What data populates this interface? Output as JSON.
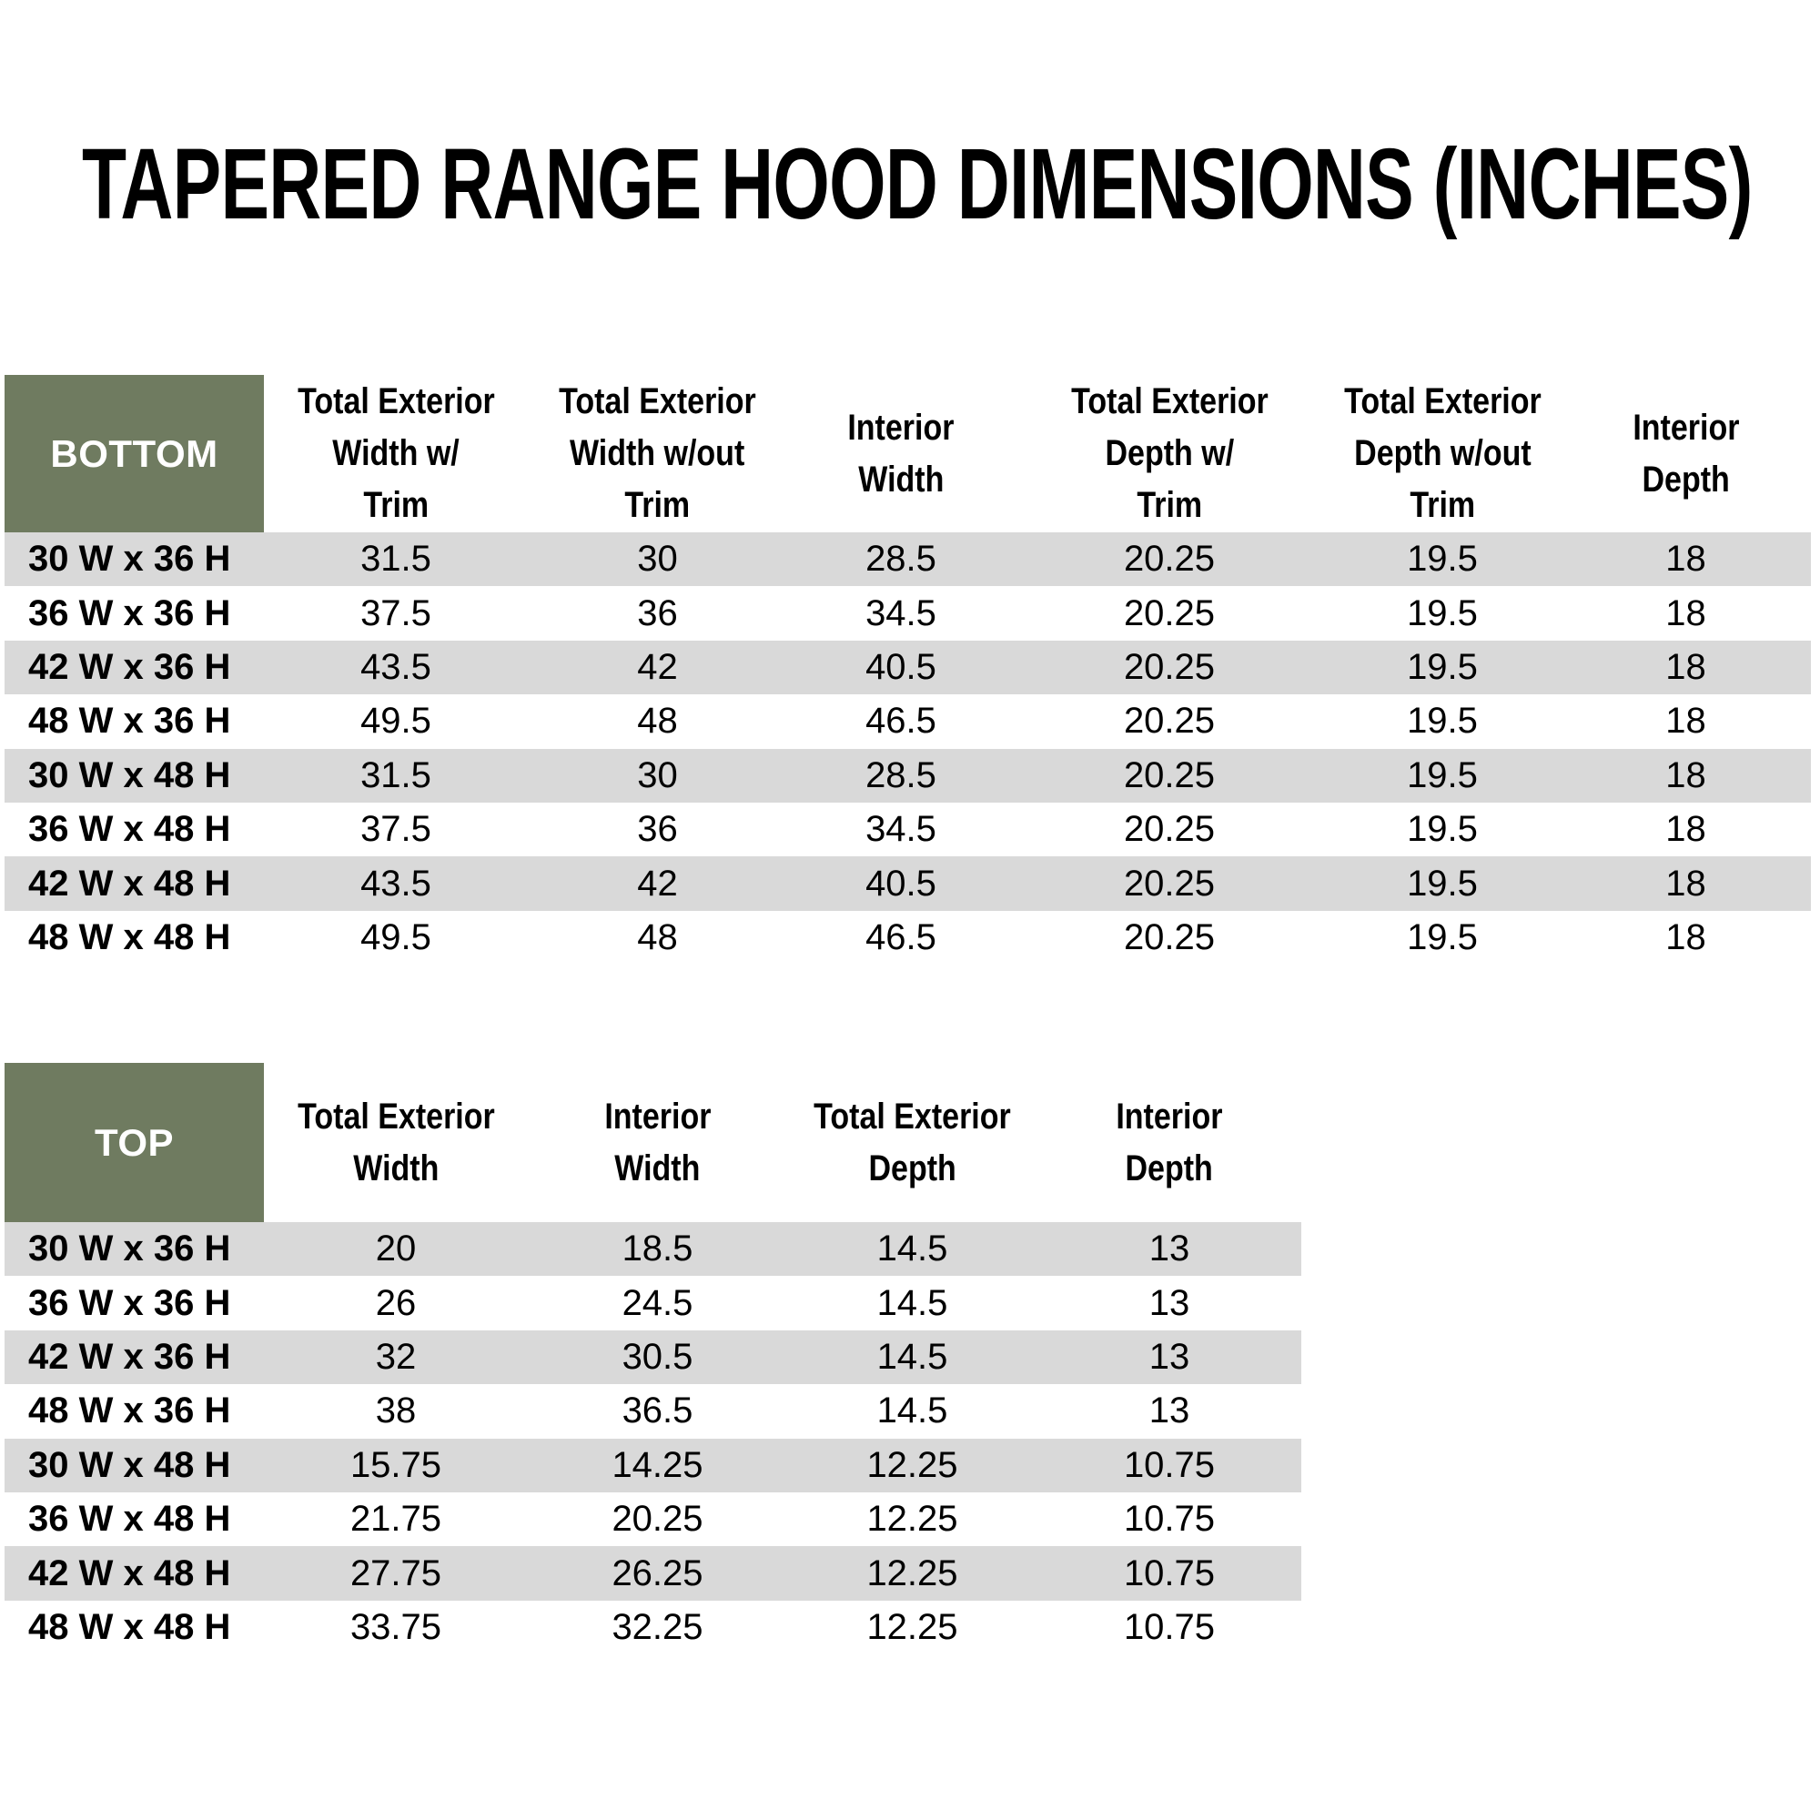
{
  "title": "TAPERED RANGE HOOD DIMENSIONS (INCHES)",
  "colors": {
    "header_green": "#6F7B60",
    "stripe_gray": "#D9D9D9",
    "text_black": "#000000"
  },
  "tables": {
    "bottom": {
      "corner_label": "BOTTOM",
      "columns": [
        {
          "label": "Total Exterior Width w/ Trim",
          "lines": [
            "Total Exterior",
            "Width w/",
            "Trim"
          ]
        },
        {
          "label": "Total Exterior Width w/out Trim",
          "lines": [
            "Total Exterior",
            "Width w/out",
            "Trim"
          ]
        },
        {
          "label": "Interior Width",
          "lines": [
            "Interior",
            "Width"
          ]
        },
        {
          "label": "Total Exterior Depth w/ Trim",
          "lines": [
            "Total Exterior",
            "Depth w/",
            "Trim"
          ]
        },
        {
          "label": "Total Exterior Depth w/out Trim",
          "lines": [
            "Total Exterior",
            "Depth w/out",
            "Trim"
          ]
        },
        {
          "label": "Interior Depth",
          "lines": [
            "Interior",
            "Depth"
          ]
        }
      ],
      "rows": [
        {
          "label": "30 W x 36 H",
          "values": [
            "31.5",
            "30",
            "28.5",
            "20.25",
            "19.5",
            "18"
          ]
        },
        {
          "label": "36 W x 36 H",
          "values": [
            "37.5",
            "36",
            "34.5",
            "20.25",
            "19.5",
            "18"
          ]
        },
        {
          "label": "42 W x 36 H",
          "values": [
            "43.5",
            "42",
            "40.5",
            "20.25",
            "19.5",
            "18"
          ]
        },
        {
          "label": "48 W x 36 H",
          "values": [
            "49.5",
            "48",
            "46.5",
            "20.25",
            "19.5",
            "18"
          ]
        },
        {
          "label": "30 W x 48 H",
          "values": [
            "31.5",
            "30",
            "28.5",
            "20.25",
            "19.5",
            "18"
          ]
        },
        {
          "label": "36 W x 48 H",
          "values": [
            "37.5",
            "36",
            "34.5",
            "20.25",
            "19.5",
            "18"
          ]
        },
        {
          "label": "42 W x 48 H",
          "values": [
            "43.5",
            "42",
            "40.5",
            "20.25",
            "19.5",
            "18"
          ]
        },
        {
          "label": "48 W x 48 H",
          "values": [
            "49.5",
            "48",
            "46.5",
            "20.25",
            "19.5",
            "18"
          ]
        }
      ]
    },
    "top": {
      "corner_label": "TOP",
      "columns": [
        {
          "label": "Total Exterior Width",
          "lines": [
            "Total Exterior",
            "Width"
          ]
        },
        {
          "label": "Interior Width",
          "lines": [
            "Interior",
            "Width"
          ]
        },
        {
          "label": "Total Exterior Depth",
          "lines": [
            "Total Exterior",
            "Depth"
          ]
        },
        {
          "label": "Interior Depth",
          "lines": [
            "Interior",
            "Depth"
          ]
        }
      ],
      "rows": [
        {
          "label": "30 W x 36 H",
          "values": [
            "20",
            "18.5",
            "14.5",
            "13"
          ]
        },
        {
          "label": "36 W x 36 H",
          "values": [
            "26",
            "24.5",
            "14.5",
            "13"
          ]
        },
        {
          "label": "42 W x 36 H",
          "values": [
            "32",
            "30.5",
            "14.5",
            "13"
          ]
        },
        {
          "label": "48 W x 36 H",
          "values": [
            "38",
            "36.5",
            "14.5",
            "13"
          ]
        },
        {
          "label": "30 W x 48 H",
          "values": [
            "15.75",
            "14.25",
            "12.25",
            "10.75"
          ]
        },
        {
          "label": "36 W x 48 H",
          "values": [
            "21.75",
            "20.25",
            "12.25",
            "10.75"
          ]
        },
        {
          "label": "42 W x 48 H",
          "values": [
            "27.75",
            "26.25",
            "12.25",
            "10.75"
          ]
        },
        {
          "label": "48 W x 48 H",
          "values": [
            "33.75",
            "32.25",
            "12.25",
            "10.75"
          ]
        }
      ]
    }
  }
}
